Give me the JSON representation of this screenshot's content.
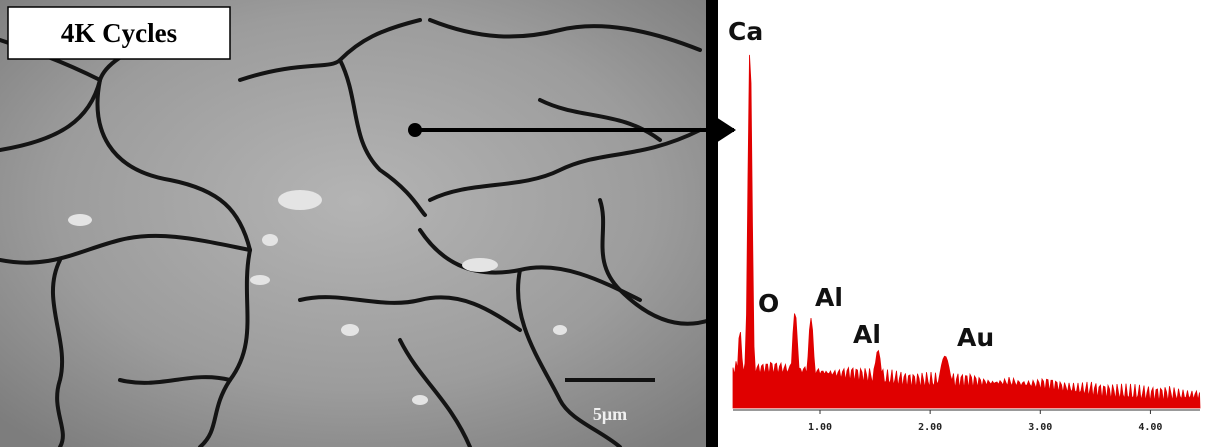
{
  "sem_image": {
    "label": "4K Cycles",
    "scale_bar": "5μm"
  },
  "spectrum": {
    "peaks": [
      "Ca",
      "O",
      "Al",
      "Al",
      "Au"
    ],
    "xlim": [
      0.21,
      4.45
    ],
    "xticks": [
      {
        "value": 1,
        "label": "1.00"
      },
      {
        "value": 2,
        "label": "2.00"
      },
      {
        "value": 3,
        "label": "3.00"
      },
      {
        "value": 4,
        "label": "4.00"
      }
    ]
  }
}
